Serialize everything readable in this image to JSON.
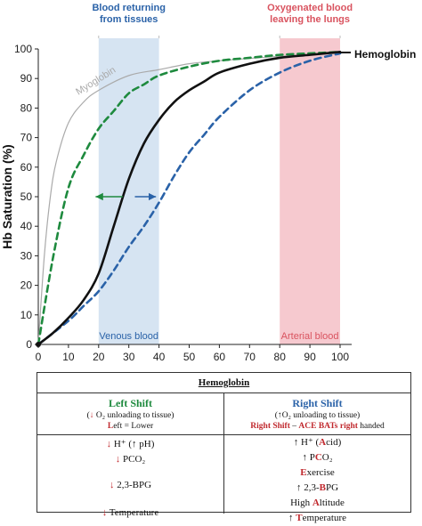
{
  "chart_data": {
    "type": "line",
    "title": "",
    "xlabel": "",
    "ylabel": "Hb Saturation (%)",
    "xlim": [
      0,
      100
    ],
    "ylim": [
      0,
      100
    ],
    "x_ticks": [
      0,
      10,
      20,
      30,
      40,
      50,
      60,
      70,
      80,
      90,
      100
    ],
    "y_ticks": [
      0,
      10,
      20,
      30,
      40,
      50,
      60,
      70,
      80,
      90,
      100
    ],
    "series": [
      {
        "name": "Hemoglobin",
        "style": "solid",
        "color": "#111111",
        "points": [
          [
            0,
            0
          ],
          [
            5,
            4
          ],
          [
            10,
            9
          ],
          [
            15,
            15
          ],
          [
            20,
            24
          ],
          [
            25,
            40
          ],
          [
            30,
            56
          ],
          [
            35,
            68
          ],
          [
            40,
            76
          ],
          [
            45,
            82
          ],
          [
            50,
            86
          ],
          [
            55,
            89
          ],
          [
            60,
            92
          ],
          [
            70,
            95
          ],
          [
            80,
            97
          ],
          [
            90,
            98
          ],
          [
            100,
            99
          ]
        ]
      },
      {
        "name": "Myoglobin",
        "style": "solid",
        "color": "#aaaaaa",
        "points": [
          [
            0,
            0
          ],
          [
            2,
            30
          ],
          [
            4,
            50
          ],
          [
            6,
            62
          ],
          [
            10,
            75
          ],
          [
            15,
            82
          ],
          [
            20,
            86
          ],
          [
            30,
            91
          ],
          [
            40,
            93
          ],
          [
            50,
            95
          ],
          [
            60,
            96
          ],
          [
            80,
            97.5
          ],
          [
            100,
            98.5
          ]
        ]
      },
      {
        "style": "dashed",
        "color": "#1e8a3e",
        "points": [
          [
            0,
            0
          ],
          [
            5,
            30
          ],
          [
            10,
            53
          ],
          [
            15,
            64
          ],
          [
            20,
            73
          ],
          [
            25,
            79
          ],
          [
            30,
            85
          ],
          [
            35,
            88
          ],
          [
            40,
            91
          ],
          [
            50,
            94
          ],
          [
            60,
            96
          ],
          [
            70,
            97
          ],
          [
            80,
            98
          ],
          [
            90,
            98.5
          ],
          [
            100,
            99
          ]
        ]
      },
      {
        "style": "dashed",
        "color": "#2a62a8",
        "points": [
          [
            0,
            0
          ],
          [
            10,
            8
          ],
          [
            15,
            13
          ],
          [
            20,
            18
          ],
          [
            25,
            25
          ],
          [
            30,
            33
          ],
          [
            35,
            40
          ],
          [
            40,
            48
          ],
          [
            45,
            57
          ],
          [
            50,
            65
          ],
          [
            55,
            71
          ],
          [
            60,
            77
          ],
          [
            70,
            86
          ],
          [
            80,
            92
          ],
          [
            90,
            96
          ],
          [
            100,
            98.5
          ]
        ]
      }
    ],
    "bands": [
      {
        "from": 20,
        "to": 40,
        "color": "#d6e4f2",
        "top_label": "Blood returning\nfrom tissues",
        "bottom_label": "Venous blood",
        "label_color": "#2a62a8"
      },
      {
        "from": 80,
        "to": 100,
        "color": "#f6c9cf",
        "top_label": "Oxygenated blood\nleaving the lungs",
        "bottom_label": "Arterial blood",
        "label_color": "#d9535f"
      }
    ],
    "annotations": [
      {
        "text": "Myoglobin",
        "color": "#aaaaaa"
      },
      {
        "text": "Hemoglobin",
        "color": "#111111"
      }
    ],
    "shift_arrows": [
      {
        "direction": "left",
        "color": "#1e8a3e",
        "y": 50
      },
      {
        "direction": "right",
        "color": "#2a62a8",
        "y": 50
      }
    ],
    "grid": false
  },
  "table": {
    "title": "Hemoglobin",
    "left": {
      "heading": "Left Shift",
      "sub1_pre": "(",
      "sub1_arrow": "↓",
      "sub1_post": " O₂ unloading to tissue)",
      "sub2_hl": "L",
      "sub2_post": "eft = Lower",
      "rows": [
        "↓ H⁺ (↑ pH)",
        "↓ PCO₂",
        "↓ 2,3-BPG",
        "↓ Temperature"
      ]
    },
    "right": {
      "heading": "Right Shift",
      "sub1": "(↑O₂ unloading to tissue)",
      "sub2": "Right Shift – ACE BATs right handed",
      "rows": [
        "↑ H⁺ (Acid)",
        "↑ PCO₂",
        "Exercise",
        "↑ 2,3-BPG",
        "High Altitude",
        "↑ Temperature"
      ]
    }
  }
}
